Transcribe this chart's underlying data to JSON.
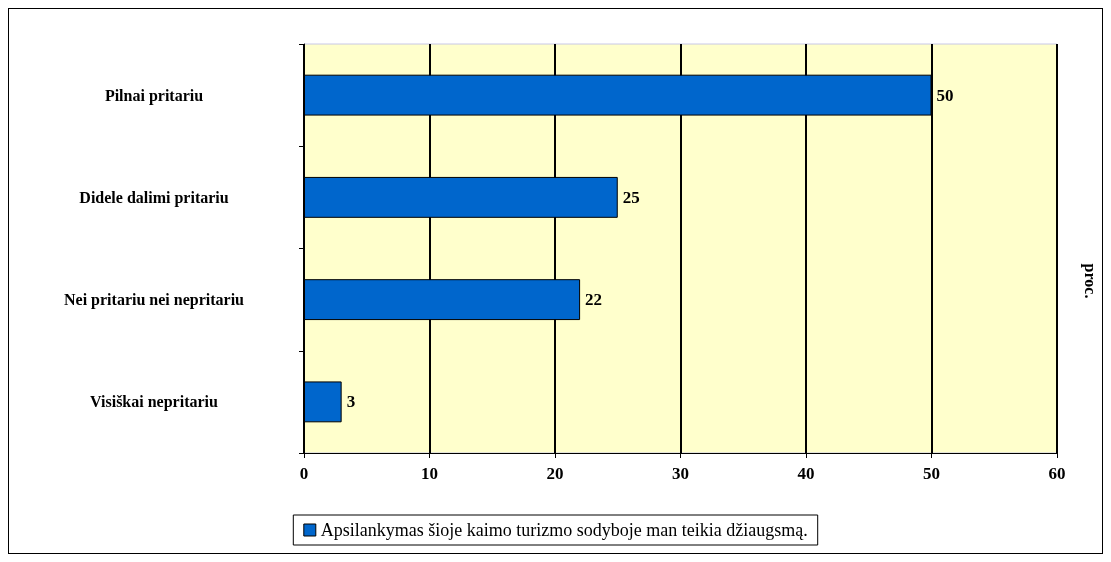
{
  "chart_data": {
    "type": "bar",
    "orientation": "horizontal",
    "categories": [
      "Pilnai pritariu",
      "Didele dalimi pritariu",
      "Nei pritariu nei nepritariu",
      "Visiškai nepritariu"
    ],
    "series": [
      {
        "name": "Apsilankymas šioje kaimo turizmo sodyboje man teikia džiaugsmą.",
        "color": "#0066cc",
        "values": [
          50,
          25,
          22,
          3
        ]
      }
    ],
    "y2label": "proc.",
    "xlim": [
      0,
      60
    ],
    "xticks": [
      0,
      10,
      20,
      30,
      40,
      50,
      60
    ],
    "grid": "x",
    "data_labels": true,
    "legend": "bottom"
  }
}
